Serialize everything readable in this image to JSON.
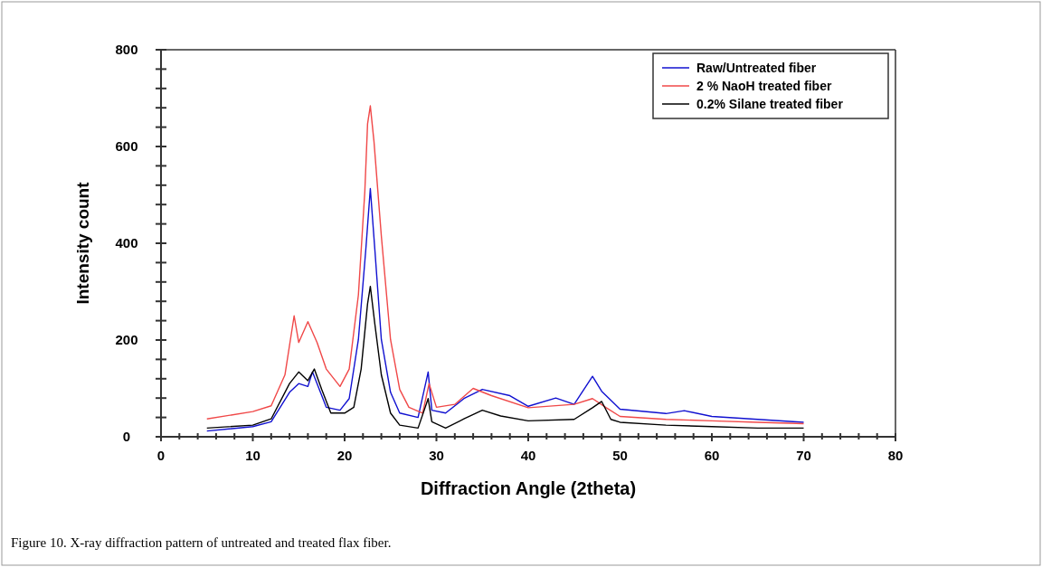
{
  "chart_data": {
    "type": "line",
    "xlabel": "Diffraction Angle (2theta)",
    "ylabel": "Intensity count",
    "annotations": [
      "Figure 10. X-ray diffraction pattern of untreated and treated flax fiber."
    ],
    "xlim": [
      0,
      80
    ],
    "ylim": [
      0,
      800
    ],
    "xticks": [
      0,
      {
        "value": 2,
        "label": null
      },
      {
        "value": 4,
        "label": null
      },
      {
        "value": 6,
        "label": null
      },
      {
        "value": 8,
        "label": null
      },
      10,
      {
        "value": 12,
        "label": null
      },
      {
        "value": 14,
        "label": null
      },
      {
        "value": 16,
        "label": null
      },
      {
        "value": 18,
        "label": null
      },
      20,
      {
        "value": 22,
        "label": null
      },
      {
        "value": 24,
        "label": null
      },
      {
        "value": 26,
        "label": null
      },
      {
        "value": 28,
        "label": null
      },
      30,
      {
        "value": 32,
        "label": null
      },
      {
        "value": 34,
        "label": null
      },
      {
        "value": 36,
        "label": null
      },
      {
        "value": 38,
        "label": null
      },
      40,
      {
        "value": 42,
        "label": null
      },
      {
        "value": 44,
        "label": null
      },
      {
        "value": 46,
        "label": null
      },
      {
        "value": 48,
        "label": null
      },
      50,
      {
        "value": 52,
        "label": null
      },
      {
        "value": 54,
        "label": null
      },
      {
        "value": 56,
        "label": null
      },
      {
        "value": 58,
        "label": null
      },
      60,
      {
        "value": 62,
        "label": null
      },
      {
        "value": 64,
        "label": null
      },
      {
        "value": 66,
        "label": null
      },
      {
        "value": 68,
        "label": null
      },
      70,
      {
        "value": 72,
        "label": null
      },
      {
        "value": 74,
        "label": null
      },
      {
        "value": 76,
        "label": null
      },
      {
        "value": 78,
        "label": null
      },
      80
    ],
    "yticks": [
      0,
      {
        "value": 40,
        "label": null
      },
      {
        "value": 80,
        "label": null
      },
      {
        "value": 120,
        "label": null
      },
      {
        "value": 160,
        "label": null
      },
      200,
      {
        "value": 240,
        "label": null
      },
      {
        "value": 280,
        "label": null
      },
      {
        "value": 320,
        "label": null
      },
      {
        "value": 360,
        "label": null
      },
      400,
      {
        "value": 440,
        "label": null
      },
      {
        "value": 480,
        "label": null
      },
      {
        "value": 520,
        "label": null
      },
      {
        "value": 560,
        "label": null
      },
      600,
      {
        "value": 640,
        "label": null
      },
      {
        "value": 680,
        "label": null
      },
      {
        "value": 720,
        "label": null
      },
      {
        "value": 760,
        "label": null
      },
      800
    ],
    "grid": false,
    "legend": "top right",
    "line_style": "solid",
    "series": [
      {
        "name": "Raw/Untreated fiber",
        "color": "#1010d0",
        "x": [
          5,
          10,
          12,
          14,
          15,
          16,
          16.5,
          17,
          18,
          19.5,
          20.5,
          21.5,
          22.3,
          22.8,
          23.3,
          24,
          25,
          26,
          28,
          29.1,
          29.5,
          31,
          33,
          35,
          38,
          40,
          43,
          45,
          47,
          48,
          50,
          55,
          57,
          60,
          65,
          70
        ],
        "values": [
          12,
          21,
          31,
          92,
          110,
          104,
          134,
          110,
          61,
          55,
          79,
          201,
          385,
          513,
          385,
          201,
          92,
          49,
          40,
          134,
          55,
          49,
          79,
          98,
          85,
          63,
          80,
          67,
          125,
          94,
          57,
          48,
          54,
          42,
          36,
          30
        ]
      },
      {
        "name": "2 % NaoH treated fiber",
        "color": "#f04848",
        "x": [
          5,
          10,
          12,
          13.5,
          14.5,
          15,
          16,
          17,
          18,
          19.5,
          20.5,
          21.5,
          22.2,
          22.5,
          22.8,
          23.2,
          24,
          25,
          26,
          27,
          28.5,
          29.2,
          30,
          32,
          34,
          36,
          40,
          45,
          47,
          48.5,
          50,
          55,
          60,
          65,
          70
        ],
        "values": [
          37,
          52,
          64,
          128,
          250,
          195,
          238,
          195,
          140,
          104,
          140,
          293,
          507,
          647,
          684,
          610,
          415,
          201,
          98,
          61,
          49,
          110,
          61,
          67,
          100,
          85,
          60,
          67,
          79,
          60,
          42,
          36,
          33,
          30,
          27
        ]
      },
      {
        "name": "0.2% Silane treated fiber",
        "color": "#000000",
        "x": [
          5,
          10,
          12,
          14,
          15,
          16,
          16.7,
          17.5,
          18.5,
          20,
          21,
          21.8,
          22.5,
          22.8,
          23.3,
          24,
          25,
          26,
          28,
          29.1,
          29.5,
          31,
          33,
          35,
          37,
          40,
          45,
          47,
          48,
          49,
          50,
          55,
          60,
          65,
          70
        ],
        "values": [
          18,
          24,
          37,
          110,
          134,
          116,
          140,
          98,
          49,
          49,
          61,
          140,
          275,
          311,
          232,
          128,
          49,
          24,
          18,
          79,
          31,
          18,
          37,
          55,
          43,
          33,
          36,
          60,
          73,
          36,
          30,
          24,
          21,
          18,
          18
        ]
      }
    ]
  }
}
